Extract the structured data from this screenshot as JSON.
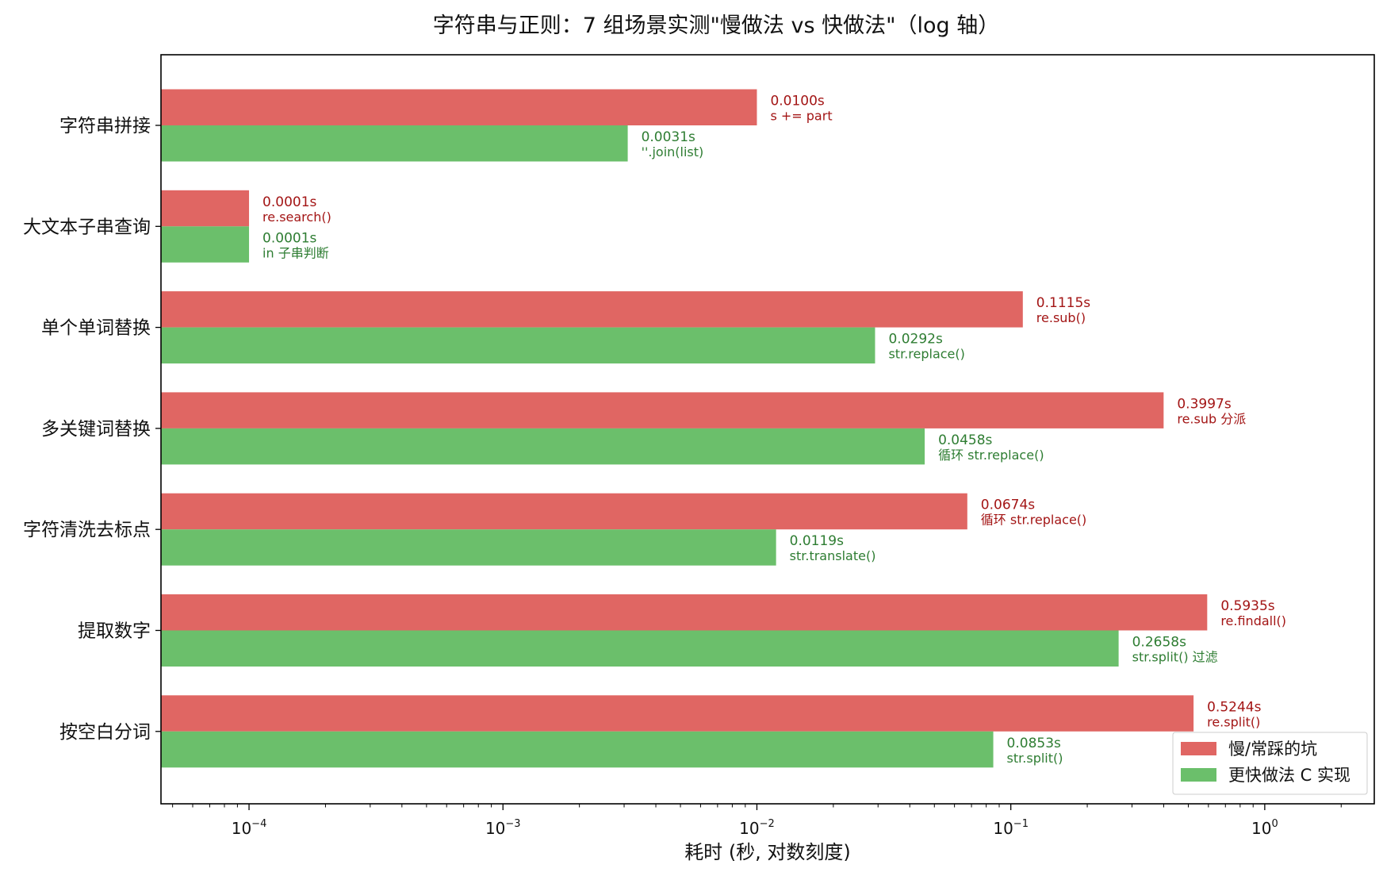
{
  "chart_data": {
    "type": "bar",
    "orientation": "horizontal",
    "title": "字符串与正则：7 组场景实测\"慢做法 vs 快做法\"（log 轴）",
    "xlabel": "耗时 (秒, 对数刻度)",
    "ylabel": "",
    "xscale": "log",
    "xlim": [
      4.5e-05,
      2.7
    ],
    "grid": false,
    "legend_position": "lower-right",
    "categories": [
      "字符串拼接",
      "大文本子串查询",
      "单个单词替换",
      "多关键词替换",
      "字符清洗去标点",
      "提取数字",
      "按空白分词"
    ],
    "x_ticks": [
      {
        "value": 0.0001,
        "base": "10",
        "exp": "−4"
      },
      {
        "value": 0.001,
        "base": "10",
        "exp": "−3"
      },
      {
        "value": 0.01,
        "base": "10",
        "exp": "−2"
      },
      {
        "value": 0.1,
        "base": "10",
        "exp": "−1"
      },
      {
        "value": 1,
        "base": "10",
        "exp": "0"
      }
    ],
    "series": [
      {
        "name": "慢/常踩的坑",
        "color": "#e06663",
        "label_color": "#a31515",
        "values": [
          0.01,
          0.0001,
          0.1115,
          0.3997,
          0.0674,
          0.5935,
          0.5244
        ],
        "value_labels": [
          "0.0100s",
          "0.0001s",
          "0.1115s",
          "0.3997s",
          "0.0674s",
          "0.5935s",
          "0.5244s"
        ],
        "method_labels": [
          "s += part",
          "re.search()",
          "re.sub()",
          "re.sub 分派",
          "循环 str.replace()",
          "re.findall()",
          "re.split()"
        ]
      },
      {
        "name": "更快做法 C 实现",
        "color": "#6bbf6b",
        "label_color": "#2e7d32",
        "values": [
          0.0031,
          0.0001,
          0.0292,
          0.0458,
          0.0119,
          0.2658,
          0.0853
        ],
        "value_labels": [
          "0.0031s",
          "0.0001s",
          "0.0292s",
          "0.0458s",
          "0.0119s",
          "0.2658s",
          "0.0853s"
        ],
        "method_labels": [
          "''.join(list)",
          "in 子串判断",
          "str.replace()",
          "循环 str.replace()",
          "str.translate()",
          "str.split() 过滤",
          "str.split()"
        ]
      }
    ]
  }
}
